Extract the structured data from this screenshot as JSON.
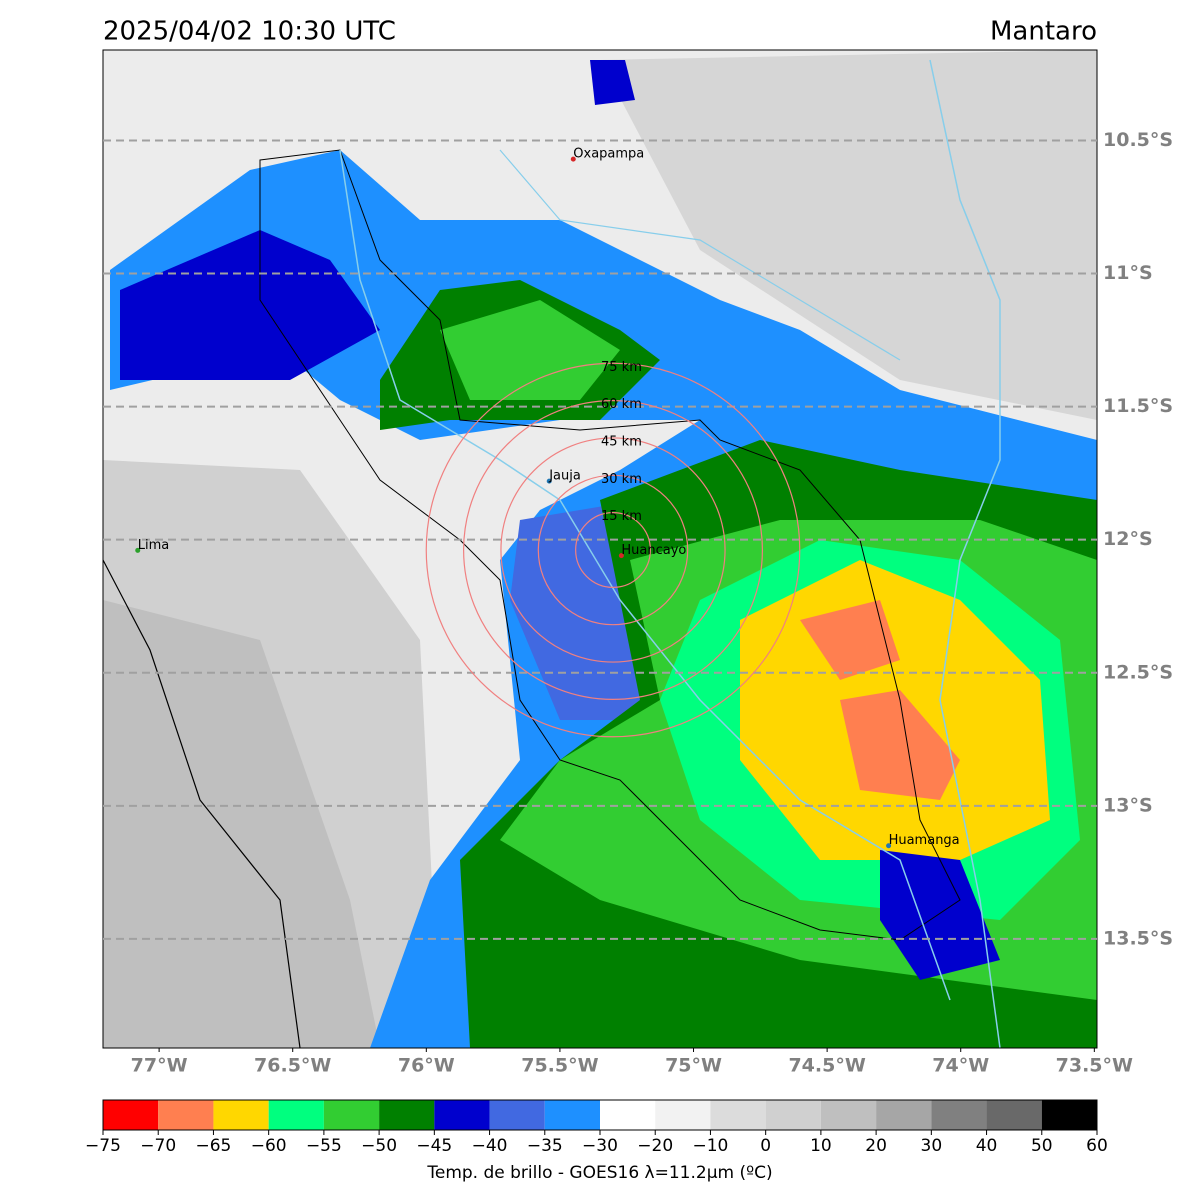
{
  "header": {
    "title": "2025/04/02 10:30 UTC",
    "region": "Mantaro"
  },
  "map": {
    "xlim": [
      -77.21,
      -73.49
    ],
    "ylim": [
      -13.91,
      -10.16
    ],
    "lat_ticks": [
      {
        "value": -10.5,
        "label": "10.5°S"
      },
      {
        "value": -11,
        "label": "11°S"
      },
      {
        "value": -11.5,
        "label": "11.5°S"
      },
      {
        "value": -12,
        "label": "12°S"
      },
      {
        "value": -12.5,
        "label": "12.5°S"
      },
      {
        "value": -13,
        "label": "13°S"
      },
      {
        "value": -13.5,
        "label": "13.5°S"
      }
    ],
    "lon_ticks": [
      {
        "value": -77,
        "label": "77°W"
      },
      {
        "value": -76.5,
        "label": "76.5°W"
      },
      {
        "value": -76,
        "label": "76°W"
      },
      {
        "value": -75.5,
        "label": "75.5°W"
      },
      {
        "value": -75,
        "label": "75°W"
      },
      {
        "value": -74.5,
        "label": "74.5°W"
      },
      {
        "value": -74,
        "label": "74°W"
      },
      {
        "value": -73.5,
        "label": "73.5°W"
      }
    ],
    "cities": [
      {
        "name": "Oxapampa",
        "lon": -75.45,
        "lat": -10.57,
        "color": "#d62728"
      },
      {
        "name": "Jauja",
        "lon": -75.54,
        "lat": -11.78,
        "color": "#1f77b4"
      },
      {
        "name": "Huancayo",
        "lon": -75.27,
        "lat": -12.06,
        "color": "#d62728"
      },
      {
        "name": "Lima",
        "lon": -77.08,
        "lat": -12.04,
        "color": "#2ca02c"
      },
      {
        "name": "Huamanga",
        "lon": -74.27,
        "lat": -13.15,
        "color": "#1f77b4"
      }
    ],
    "rings": [
      {
        "value": 15,
        "label": "15 km"
      },
      {
        "value": 30,
        "label": "30 km"
      },
      {
        "value": 45,
        "label": "45 km"
      },
      {
        "value": 60,
        "label": "60 km"
      },
      {
        "value": 75,
        "label": "75 km"
      }
    ]
  },
  "colorbar": {
    "label": "Temp. de brillo - GOES16 λ=11.2μm (ºC)",
    "ticks": [
      {
        "value": -75,
        "label": "−75"
      },
      {
        "value": -70,
        "label": "−70"
      },
      {
        "value": -65,
        "label": "−65"
      },
      {
        "value": -60,
        "label": "−60"
      },
      {
        "value": -55,
        "label": "−55"
      },
      {
        "value": -50,
        "label": "−50"
      },
      {
        "value": -45,
        "label": "−45"
      },
      {
        "value": -40,
        "label": "−40"
      },
      {
        "value": -35,
        "label": "−35"
      },
      {
        "value": -30,
        "label": "−30"
      },
      {
        "value": -20,
        "label": "−20"
      },
      {
        "value": -10,
        "label": "−10"
      },
      0,
      10,
      20,
      30,
      40,
      50,
      60
    ],
    "colors": [
      "#ff0000",
      "#ff7f50",
      "#ffd700",
      "#00ff7f",
      "#32cd32",
      "#008000",
      "#0000cd",
      "#4169e1",
      "#1e90ff",
      "#ffffff",
      "#f2f2f2",
      "#dcdcdc",
      "#d0d0d0",
      "#bfbfbf",
      "#a6a6a6",
      "#808080",
      "#696969",
      "#000000"
    ]
  }
}
